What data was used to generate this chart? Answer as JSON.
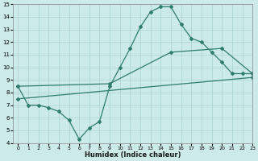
{
  "line1_x": [
    0,
    1,
    2,
    3,
    4,
    5,
    6,
    7,
    8,
    9,
    10,
    11,
    12,
    13,
    14,
    15,
    16,
    17,
    18,
    19,
    20,
    21,
    22,
    23
  ],
  "line1_y": [
    8.5,
    7.0,
    7.0,
    6.8,
    6.5,
    5.8,
    4.3,
    5.2,
    5.7,
    8.5,
    10.0,
    11.5,
    13.2,
    14.4,
    14.8,
    14.8,
    13.4,
    12.3,
    12.0,
    11.2,
    10.4,
    9.5,
    9.5,
    9.5
  ],
  "line2_x": [
    0,
    9,
    15,
    20,
    23
  ],
  "line2_y": [
    8.5,
    8.7,
    11.2,
    11.5,
    9.5
  ],
  "line3_x": [
    0,
    23
  ],
  "line3_y": [
    7.5,
    9.2
  ],
  "color": "#2e7d6e",
  "bg_color": "#cceae8",
  "grid_color": "#aad4d0",
  "xlabel": "Humidex (Indice chaleur)",
  "xlim": [
    -0.5,
    23
  ],
  "ylim": [
    4,
    15
  ],
  "yticks": [
    4,
    5,
    6,
    7,
    8,
    9,
    10,
    11,
    12,
    13,
    14,
    15
  ],
  "xticks": [
    0,
    1,
    2,
    3,
    4,
    5,
    6,
    7,
    8,
    9,
    10,
    11,
    12,
    13,
    14,
    15,
    16,
    17,
    18,
    19,
    20,
    21,
    22,
    23
  ]
}
